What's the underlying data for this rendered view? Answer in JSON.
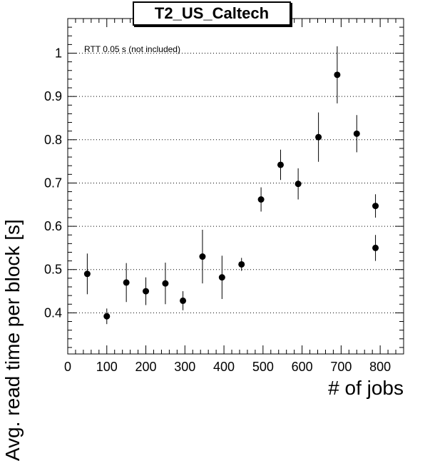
{
  "chart_data": {
    "type": "scatter",
    "title": "T2_US_Caltech",
    "xlabel": "# of jobs",
    "ylabel": "Avg. read time per block [s]",
    "annotation": "RTT 0.05 s (not included)",
    "xlim": [
      0,
      860
    ],
    "ylim": [
      0.305,
      1.08
    ],
    "xticks": [
      0,
      100,
      200,
      300,
      400,
      500,
      600,
      700,
      800
    ],
    "yticks": [
      0.4,
      0.5,
      0.6,
      0.7,
      0.8,
      0.9,
      1.0
    ],
    "ytick_labels": [
      "0.4",
      "0.5",
      "0.6",
      "0.7",
      "0.8",
      "0.9",
      "1"
    ],
    "grid": "horizontal dotted",
    "points": [
      {
        "x": 50,
        "y": 0.49,
        "err": 0.047
      },
      {
        "x": 100,
        "y": 0.392,
        "err": 0.018
      },
      {
        "x": 150,
        "y": 0.47,
        "err": 0.045
      },
      {
        "x": 200,
        "y": 0.45,
        "err": 0.032
      },
      {
        "x": 250,
        "y": 0.468,
        "err": 0.048
      },
      {
        "x": 295,
        "y": 0.428,
        "err": 0.022
      },
      {
        "x": 345,
        "y": 0.53,
        "err": 0.062
      },
      {
        "x": 395,
        "y": 0.482,
        "err": 0.05
      },
      {
        "x": 445,
        "y": 0.512,
        "err": 0.015
      },
      {
        "x": 495,
        "y": 0.662,
        "err": 0.028
      },
      {
        "x": 545,
        "y": 0.742,
        "err": 0.035
      },
      {
        "x": 590,
        "y": 0.698,
        "err": 0.036
      },
      {
        "x": 642,
        "y": 0.806,
        "err": 0.057
      },
      {
        "x": 690,
        "y": 0.95,
        "err": 0.066
      },
      {
        "x": 740,
        "y": 0.814,
        "err": 0.043
      },
      {
        "x": 788,
        "y": 0.647,
        "err": 0.027
      },
      {
        "x": 788,
        "y": 0.55,
        "err": 0.03
      }
    ],
    "marker_color": "#000000"
  }
}
